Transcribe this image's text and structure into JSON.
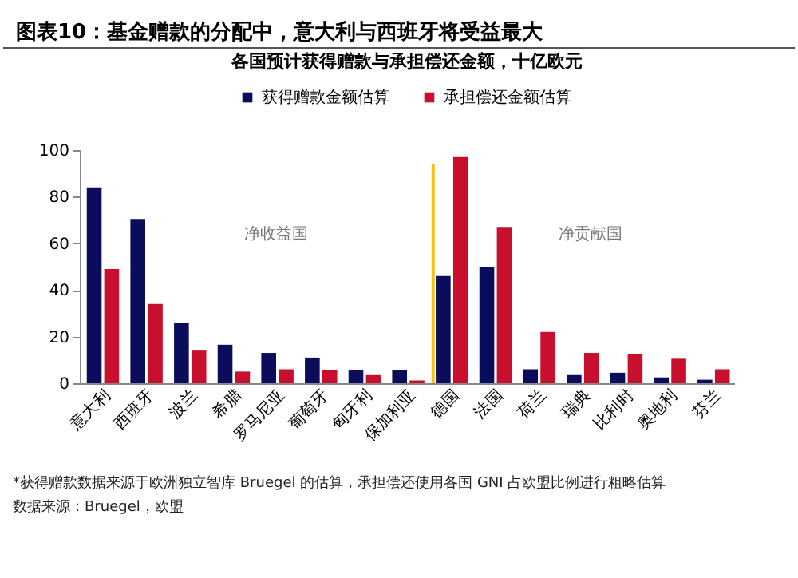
{
  "chart_data": {
    "type": "bar",
    "title": "图表10：基金赠款的分配中，意大利与西班牙将受益最大",
    "subtitle": "各国预计获得赠款与承担偿还金额，十亿欧元",
    "categories": [
      "意大利",
      "西班牙",
      "波兰",
      "希腊",
      "罗马尼亚",
      "葡萄牙",
      "匈牙利",
      "保加利亚",
      "德国",
      "法国",
      "荷兰",
      "瑞典",
      "比利时",
      "奥地利",
      "芬兰"
    ],
    "series": [
      {
        "name": "获得赠款金额估算",
        "color": "#0c0c5c",
        "values": [
          84,
          70.5,
          26,
          16.5,
          13,
          11,
          5.5,
          5.5,
          46,
          50,
          6,
          3.5,
          4.5,
          2.5,
          1.5
        ]
      },
      {
        "name": "承担偿还金额估算",
        "color": "#c8102e",
        "values": [
          49,
          34,
          14,
          5,
          6,
          5.5,
          3.5,
          1.2,
          97,
          67,
          22,
          13,
          12.5,
          10.5,
          6
        ]
      }
    ],
    "ylim": [
      0,
      100
    ],
    "yticks": [
      0,
      20,
      40,
      60,
      80,
      100
    ],
    "grid": false,
    "legend": "top",
    "ref_lines": [
      {
        "axis": "x",
        "value": "德国",
        "color": "#f0c419",
        "line_style": "solid"
      }
    ],
    "annotations": [
      "净收益国",
      "净贡献国",
      "*获得赠款数据来源于欧洲独立智库 Bruegel 的估算，承担偿还使用各国 GNI 占欧盟比例进行粗略估算",
      "数据来源：Bruegel，欧盟"
    ]
  }
}
